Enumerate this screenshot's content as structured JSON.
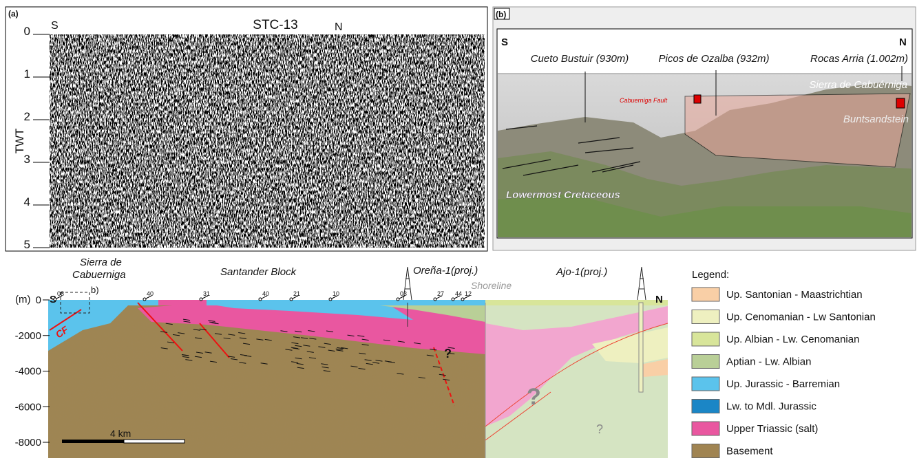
{
  "panel_a": {
    "label": "(a)",
    "left": "S",
    "title": "STC-13",
    "right": "N",
    "axis_label": "TWT",
    "ticks": [
      0,
      1,
      2,
      3,
      4,
      5
    ]
  },
  "panel_b": {
    "label": "(b)",
    "left": "S",
    "right": "N",
    "peaks": [
      "Cueto Bustuir (930m)",
      "Picos de Ozalba (932m)",
      "Rocas Arria (1.002m)"
    ],
    "range": "Sierra de Cabuérniga",
    "fault": "Cabuerniga Fault",
    "unit_upper": "Buntsandstein",
    "unit_lower": "Lowermost Cretaceous"
  },
  "section": {
    "unit": "(m)",
    "left": "S",
    "right": "N",
    "sierra": [
      "Sierra de",
      "Cabuerniga"
    ],
    "block": "Santander Block",
    "well_1": "Oreña-1(proj.)",
    "well_2": "Ajo-1(proj.)",
    "shoreline": "Shoreline",
    "box_label": "b)",
    "fault": "CF",
    "depth_ticks": [
      0,
      -2000,
      -4000,
      -6000,
      -8000
    ],
    "dips": [
      "08",
      "40",
      "31",
      "40",
      "21",
      "10",
      "03",
      "27",
      "44",
      "12"
    ],
    "unknown": [
      "?",
      "?",
      "?"
    ],
    "scale": "4 km"
  },
  "legend": {
    "title": "Legend:",
    "items": [
      {
        "label": "Up. Santonian - Maastrichtian",
        "color": "#f9cfa6"
      },
      {
        "label": "Up. Cenomanian - Lw Santonian",
        "color": "#eef0c0"
      },
      {
        "label": "Up. Albian - Lw. Cenomanian",
        "color": "#d8e59a"
      },
      {
        "label": "Aptian - Lw. Albian",
        "color": "#b9cf97"
      },
      {
        "label": "Up. Jurassic - Barremian",
        "color": "#5bc3ec"
      },
      {
        "label": "Lw. to Mdl. Jurassic",
        "color": "#1b86c6"
      },
      {
        "label": "Upper Triassic (salt)",
        "color": "#e957a0"
      },
      {
        "label": "Basement",
        "color": "#a08452"
      }
    ]
  }
}
